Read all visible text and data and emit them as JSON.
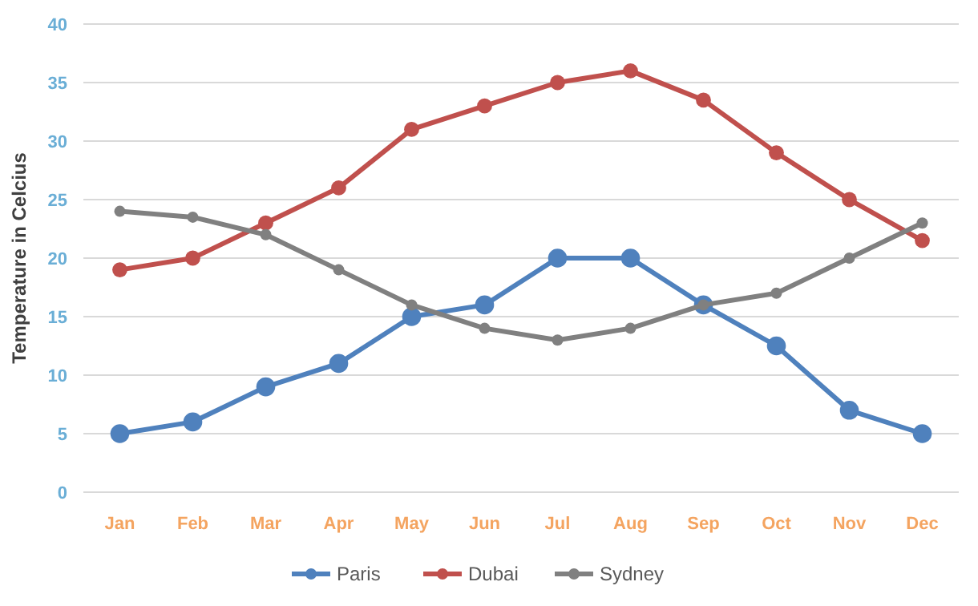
{
  "chart_data": {
    "type": "line",
    "ylabel": "Temperature in Celcius",
    "categories": [
      "Jan",
      "Feb",
      "Mar",
      "Apr",
      "May",
      "Jun",
      "Jul",
      "Aug",
      "Sep",
      "Oct",
      "Nov",
      "Dec"
    ],
    "series": [
      {
        "name": "Paris",
        "color": "#4f81bd",
        "values": [
          5,
          6,
          9,
          11,
          15,
          16,
          20,
          20,
          16,
          12.5,
          7,
          5
        ]
      },
      {
        "name": "Dubai",
        "color": "#c0504d",
        "values": [
          19,
          20,
          23,
          26,
          31,
          33,
          35,
          36,
          33.5,
          29,
          25,
          21.5
        ]
      },
      {
        "name": "Sydney",
        "color": "#808080",
        "values": [
          24,
          23.5,
          22,
          19,
          16,
          14,
          13,
          14,
          16,
          17,
          20,
          23
        ]
      }
    ],
    "ylim": [
      0,
      40
    ],
    "yticks": [
      0,
      5,
      10,
      15,
      20,
      25,
      30,
      35,
      40
    ],
    "grid": "y",
    "legend": "bottom",
    "marker": "circle",
    "line_style": "solid"
  }
}
